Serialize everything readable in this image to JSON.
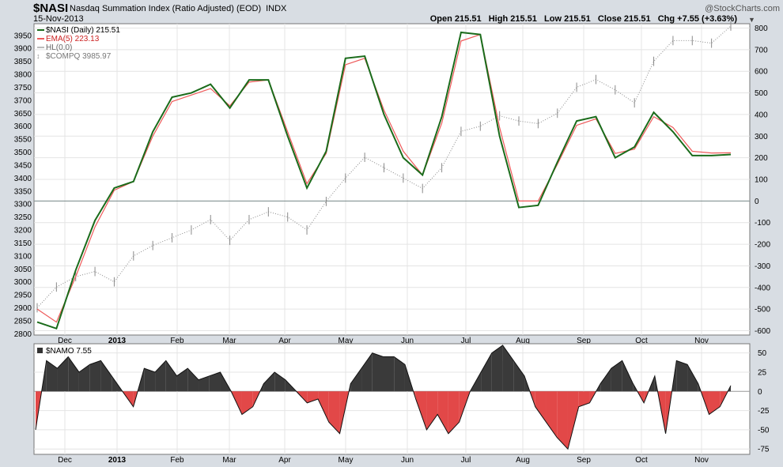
{
  "header": {
    "symbol": "$NASI",
    "name": "Nasdaq Summation Index (Ratio Adjusted) (EOD)",
    "exchange": "INDX",
    "date": "15-Nov-2013",
    "ohlc": "Open 215.51   High 215.51   Low 215.51   Close 215.51   Chg +7.55 (+3.63%)",
    "credit": "@StockCharts.com",
    "arrow_glyph": "▼"
  },
  "legend": {
    "nasi": "$NASI (Daily) 215.51",
    "ema": "EMA(5) 223.13",
    "hl": "HL(0.0)",
    "compq": "$COMPQ 3985.97"
  },
  "lower_legend": "$NAMO 7.55",
  "colors": {
    "nasi": "#1a6b1a",
    "ema": "#ee5a5a",
    "compq": "#8a8a8a",
    "pos_fill": "#3a3a3a",
    "neg_fill": "#e24848"
  },
  "chart_data": [
    {
      "type": "line",
      "title": "$NASI",
      "x_labels": [
        "Dec",
        "2013",
        "Feb",
        "Mar",
        "Apr",
        "May",
        "Jun",
        "Jul",
        "Aug",
        "Sep",
        "Oct",
        "Nov"
      ],
      "y_right_ticks": [
        -600,
        -500,
        -400,
        -300,
        -200,
        -100,
        0,
        100,
        200,
        300,
        400,
        500,
        600,
        700,
        800
      ],
      "y_left_ticks": [
        2800,
        2850,
        2900,
        2950,
        3000,
        3050,
        3100,
        3150,
        3200,
        3250,
        3300,
        3350,
        3400,
        3450,
        3500,
        3550,
        3600,
        3650,
        3700,
        3750,
        3800,
        3850,
        3900,
        3950
      ],
      "right_ylim": [
        -620,
        820
      ],
      "left_ylim": [
        2795,
        3995
      ],
      "legend_placement": "top-left",
      "x_points": [
        "Nov-15",
        "Nov-23",
        "Dec-03",
        "Dec-13",
        "Dec-26",
        "Jan-07",
        "Jan-22",
        "Feb-04",
        "Feb-15",
        "Feb-26",
        "Mar-07",
        "Mar-19",
        "Mar-28",
        "Apr-10",
        "Apr-22",
        "May-03",
        "May-14",
        "May-22",
        "Jun-03",
        "Jun-13",
        "Jun-24",
        "Jul-05",
        "Jul-16",
        "Jul-24",
        "Aug-05",
        "Aug-16",
        "Aug-28",
        "Sep-05",
        "Sep-13",
        "Sep-23",
        "Oct-01",
        "Oct-09",
        "Oct-17",
        "Oct-24",
        "Oct-31",
        "Nov-08",
        "Nov-15"
      ],
      "series": [
        {
          "name": "$NASI (Daily)",
          "values": [
            -560,
            -590,
            -320,
            -90,
            60,
            90,
            320,
            480,
            500,
            540,
            430,
            560,
            560,
            300,
            60,
            230,
            660,
            670,
            400,
            200,
            120,
            390,
            780,
            770,
            300,
            -30,
            -20,
            180,
            370,
            390,
            200,
            250,
            410,
            320,
            210,
            210,
            215
          ]
        },
        {
          "name": "EMA(5)",
          "values": [
            -500,
            -560,
            -350,
            -120,
            50,
            90,
            300,
            460,
            490,
            520,
            440,
            550,
            560,
            320,
            80,
            220,
            630,
            660,
            420,
            230,
            120,
            360,
            740,
            770,
            340,
            0,
            0,
            170,
            350,
            380,
            220,
            240,
            390,
            340,
            230,
            222,
            223
          ]
        },
        {
          "name": "HL",
          "values": [
            0,
            0,
            0,
            0,
            0,
            0,
            0,
            0,
            0,
            0,
            0,
            0,
            0,
            0,
            0,
            0,
            0,
            0,
            0,
            0,
            0,
            0,
            0,
            0,
            0,
            0,
            0,
            0,
            0,
            0,
            0,
            0,
            0,
            0,
            0,
            0,
            0
          ]
        },
        {
          "name": "$COMPQ",
          "values": [
            2900,
            2980,
            3020,
            3040,
            3000,
            3100,
            3140,
            3170,
            3200,
            3240,
            3160,
            3240,
            3270,
            3250,
            3200,
            3310,
            3400,
            3480,
            3440,
            3400,
            3360,
            3440,
            3580,
            3600,
            3640,
            3620,
            3610,
            3650,
            3750,
            3780,
            3740,
            3690,
            3850,
            3930,
            3930,
            3920,
            3986
          ]
        }
      ]
    },
    {
      "type": "area",
      "title": "$NAMO",
      "x_labels": [
        "Dec",
        "2013",
        "Feb",
        "Mar",
        "Apr",
        "May",
        "Jun",
        "Jul",
        "Aug",
        "Sep",
        "Oct",
        "Nov"
      ],
      "y_ticks": [
        -75,
        -50,
        -25,
        0,
        25,
        50
      ],
      "ylim": [
        -82,
        62
      ],
      "x_points": [
        "Nov-15",
        "Nov-20",
        "Nov-26",
        "Dec-02",
        "Dec-06",
        "Dec-12",
        "Dec-18",
        "Dec-24",
        "Dec-31",
        "Jan-07",
        "Jan-13",
        "Jan-17",
        "Jan-23",
        "Jan-29",
        "Feb-04",
        "Feb-10",
        "Feb-14",
        "Feb-21",
        "Feb-27",
        "Mar-05",
        "Mar-11",
        "Mar-15",
        "Mar-21",
        "Mar-27",
        "Apr-03",
        "Apr-09",
        "Apr-15",
        "Apr-19",
        "Apr-25",
        "May-01",
        "May-07",
        "May-13",
        "May-17",
        "May-23",
        "May-30",
        "Jun-05",
        "Jun-11",
        "Jun-17",
        "Jun-21",
        "Jun-27",
        "Jul-03",
        "Jul-10",
        "Jul-16",
        "Jul-22",
        "Jul-26",
        "Aug-01",
        "Aug-07",
        "Aug-13",
        "Aug-19",
        "Aug-23",
        "Aug-29",
        "Sep-05",
        "Sep-11",
        "Sep-17",
        "Sep-23",
        "Sep-27",
        "Oct-03",
        "Oct-09",
        "Oct-15",
        "Oct-21",
        "Oct-25",
        "Oct-31",
        "Nov-06",
        "Nov-12",
        "Nov-15"
      ],
      "series": [
        {
          "name": "$NAMO",
          "values": [
            -50,
            40,
            30,
            45,
            25,
            35,
            40,
            20,
            0,
            -20,
            30,
            25,
            40,
            20,
            30,
            15,
            20,
            25,
            0,
            -30,
            -20,
            10,
            25,
            15,
            0,
            -15,
            -10,
            -40,
            -55,
            10,
            30,
            50,
            45,
            45,
            35,
            -10,
            -50,
            -30,
            -55,
            -40,
            0,
            25,
            50,
            60,
            40,
            20,
            -20,
            -40,
            -60,
            -75,
            -20,
            -15,
            10,
            30,
            40,
            10,
            -15,
            20,
            -55,
            40,
            35,
            10,
            -30,
            -20,
            7.55
          ]
        }
      ]
    }
  ]
}
